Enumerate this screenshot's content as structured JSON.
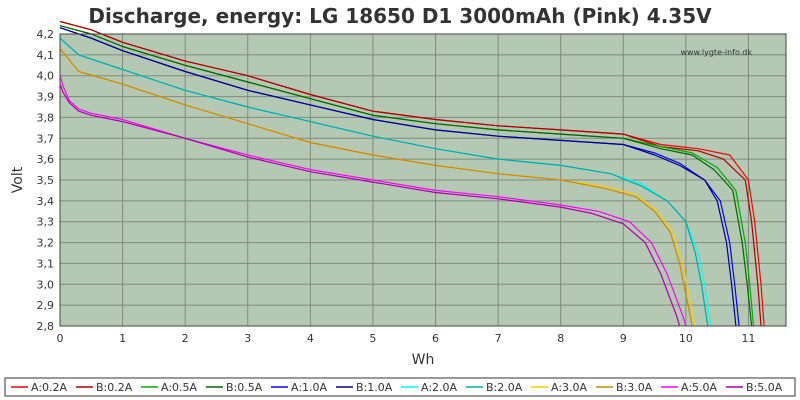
{
  "chart_data": {
    "type": "line",
    "title": "Discharge, energy: LG 18650 D1 3000mAh (Pink) 4.35V",
    "xlabel": "Wh",
    "ylabel": "Volt",
    "watermark": "www.lygte-info.dk",
    "xlim": [
      0,
      11.6
    ],
    "ylim": [
      2.8,
      4.2
    ],
    "x_ticks": [
      0,
      1,
      2,
      3,
      4,
      5,
      6,
      7,
      8,
      9,
      10,
      11
    ],
    "y_ticks": [
      "2,8",
      "2,9",
      "3,0",
      "3,1",
      "3,2",
      "3,3",
      "3,4",
      "3,5",
      "3,6",
      "3,7",
      "3,8",
      "3,9",
      "4,0",
      "4,1",
      "4,2"
    ],
    "grid": true,
    "legend_position": "bottom",
    "plot_background": "#b4c8b4",
    "series": [
      {
        "name": "A:0.2A",
        "color": "#ff0000",
        "x": [
          0,
          0.5,
          1,
          2,
          3,
          4,
          5,
          6,
          7,
          8,
          9,
          9.6,
          10.2,
          10.7,
          11.0,
          11.1,
          11.2,
          11.25
        ],
        "y": [
          4.26,
          4.22,
          4.16,
          4.07,
          4.0,
          3.91,
          3.83,
          3.79,
          3.76,
          3.74,
          3.72,
          3.67,
          3.65,
          3.62,
          3.5,
          3.3,
          3.0,
          2.8
        ]
      },
      {
        "name": "B:0.2A",
        "color": "#aa0000",
        "x": [
          0,
          0.5,
          1,
          2,
          3,
          4,
          5,
          6,
          7,
          8,
          9,
          9.6,
          10.2,
          10.6,
          10.95,
          11.05,
          11.15,
          11.2
        ],
        "y": [
          4.26,
          4.22,
          4.16,
          4.07,
          4.0,
          3.91,
          3.83,
          3.79,
          3.76,
          3.74,
          3.72,
          3.66,
          3.64,
          3.6,
          3.5,
          3.3,
          3.0,
          2.8
        ]
      },
      {
        "name": "A:0.5A",
        "color": "#00aa00",
        "x": [
          0,
          0.5,
          1,
          2,
          3,
          4,
          5,
          6,
          7,
          8,
          9,
          9.6,
          10.1,
          10.5,
          10.8,
          10.95,
          11.02,
          11.08
        ],
        "y": [
          4.24,
          4.2,
          4.14,
          4.05,
          3.97,
          3.89,
          3.81,
          3.77,
          3.74,
          3.72,
          3.7,
          3.66,
          3.63,
          3.56,
          3.45,
          3.2,
          3.0,
          2.8
        ]
      },
      {
        "name": "B:0.5A",
        "color": "#006600",
        "x": [
          0,
          0.5,
          1,
          2,
          3,
          4,
          5,
          6,
          7,
          8,
          9,
          9.6,
          10.1,
          10.45,
          10.75,
          10.9,
          10.98,
          11.05
        ],
        "y": [
          4.24,
          4.2,
          4.14,
          4.05,
          3.97,
          3.89,
          3.81,
          3.77,
          3.74,
          3.72,
          3.7,
          3.65,
          3.62,
          3.55,
          3.45,
          3.2,
          3.0,
          2.8
        ]
      },
      {
        "name": "A:1.0A",
        "color": "#0000ff",
        "x": [
          0,
          0.5,
          1,
          2,
          3,
          4,
          5,
          6,
          7,
          8,
          9,
          9.5,
          9.9,
          10.3,
          10.55,
          10.7,
          10.78,
          10.85
        ],
        "y": [
          4.23,
          4.18,
          4.12,
          4.02,
          3.93,
          3.86,
          3.79,
          3.74,
          3.71,
          3.69,
          3.67,
          3.63,
          3.58,
          3.5,
          3.4,
          3.2,
          3.0,
          2.8
        ]
      },
      {
        "name": "B:1.0A",
        "color": "#000088",
        "x": [
          0,
          0.5,
          1,
          2,
          3,
          4,
          5,
          6,
          7,
          8,
          9,
          9.5,
          9.9,
          10.3,
          10.5,
          10.65,
          10.73,
          10.8
        ],
        "y": [
          4.23,
          4.18,
          4.12,
          4.02,
          3.93,
          3.86,
          3.79,
          3.74,
          3.71,
          3.69,
          3.67,
          3.62,
          3.57,
          3.5,
          3.4,
          3.2,
          3.0,
          2.8
        ]
      },
      {
        "name": "A:2.0A",
        "color": "#00ffff",
        "x": [
          0,
          0.3,
          1,
          2,
          3,
          4,
          5,
          6,
          7,
          8,
          8.8,
          9.3,
          9.7,
          10.0,
          10.2,
          10.3,
          10.35,
          10.4
        ],
        "y": [
          4.18,
          4.1,
          4.03,
          3.93,
          3.85,
          3.78,
          3.71,
          3.65,
          3.6,
          3.57,
          3.53,
          3.48,
          3.4,
          3.3,
          3.15,
          3.0,
          2.9,
          2.8
        ]
      },
      {
        "name": "B:2.0A",
        "color": "#00aaaa",
        "x": [
          0,
          0.3,
          1,
          2,
          3,
          4,
          5,
          6,
          7,
          8,
          8.8,
          9.3,
          9.7,
          10.0,
          10.15,
          10.25,
          10.3,
          10.35
        ],
        "y": [
          4.18,
          4.1,
          4.03,
          3.93,
          3.85,
          3.78,
          3.71,
          3.65,
          3.6,
          3.57,
          3.53,
          3.47,
          3.4,
          3.3,
          3.15,
          3.0,
          2.9,
          2.8
        ]
      },
      {
        "name": "A:3.0A",
        "color": "#ffcc00",
        "x": [
          0,
          0.3,
          1,
          2,
          3,
          4,
          5,
          6,
          7,
          8,
          8.7,
          9.2,
          9.55,
          9.8,
          9.95,
          10.05,
          10.1,
          10.15
        ],
        "y": [
          4.13,
          4.02,
          3.96,
          3.86,
          3.77,
          3.68,
          3.62,
          3.57,
          3.53,
          3.5,
          3.47,
          3.43,
          3.35,
          3.25,
          3.1,
          2.95,
          2.88,
          2.8
        ]
      },
      {
        "name": "B:3.0A",
        "color": "#cc8800",
        "x": [
          0,
          0.3,
          1,
          2,
          3,
          4,
          5,
          6,
          7,
          8,
          8.7,
          9.2,
          9.5,
          9.75,
          9.9,
          10.0,
          10.05,
          10.1
        ],
        "y": [
          4.13,
          4.02,
          3.96,
          3.86,
          3.77,
          3.68,
          3.62,
          3.57,
          3.53,
          3.5,
          3.46,
          3.42,
          3.35,
          3.25,
          3.1,
          2.95,
          2.88,
          2.8
        ]
      },
      {
        "name": "A:5.0A",
        "color": "#ff00ff",
        "x": [
          0,
          0.05,
          0.15,
          0.3,
          0.5,
          1,
          2,
          3,
          4,
          5,
          6,
          7,
          8,
          8.6,
          9.1,
          9.45,
          9.7,
          9.85,
          9.95,
          10.0
        ],
        "y": [
          4.0,
          3.95,
          3.88,
          3.84,
          3.82,
          3.79,
          3.7,
          3.62,
          3.55,
          3.5,
          3.45,
          3.42,
          3.38,
          3.35,
          3.3,
          3.2,
          3.05,
          2.93,
          2.85,
          2.8
        ]
      },
      {
        "name": "B:5.0A",
        "color": "#aa00aa",
        "x": [
          0,
          0.05,
          0.15,
          0.3,
          0.5,
          1,
          2,
          3,
          4,
          5,
          6,
          7,
          8,
          8.5,
          9.0,
          9.35,
          9.6,
          9.75,
          9.85,
          9.9
        ],
        "y": [
          3.96,
          3.92,
          3.87,
          3.83,
          3.81,
          3.78,
          3.7,
          3.61,
          3.54,
          3.49,
          3.44,
          3.41,
          3.37,
          3.34,
          3.29,
          3.2,
          3.05,
          2.93,
          2.85,
          2.8
        ]
      }
    ]
  }
}
